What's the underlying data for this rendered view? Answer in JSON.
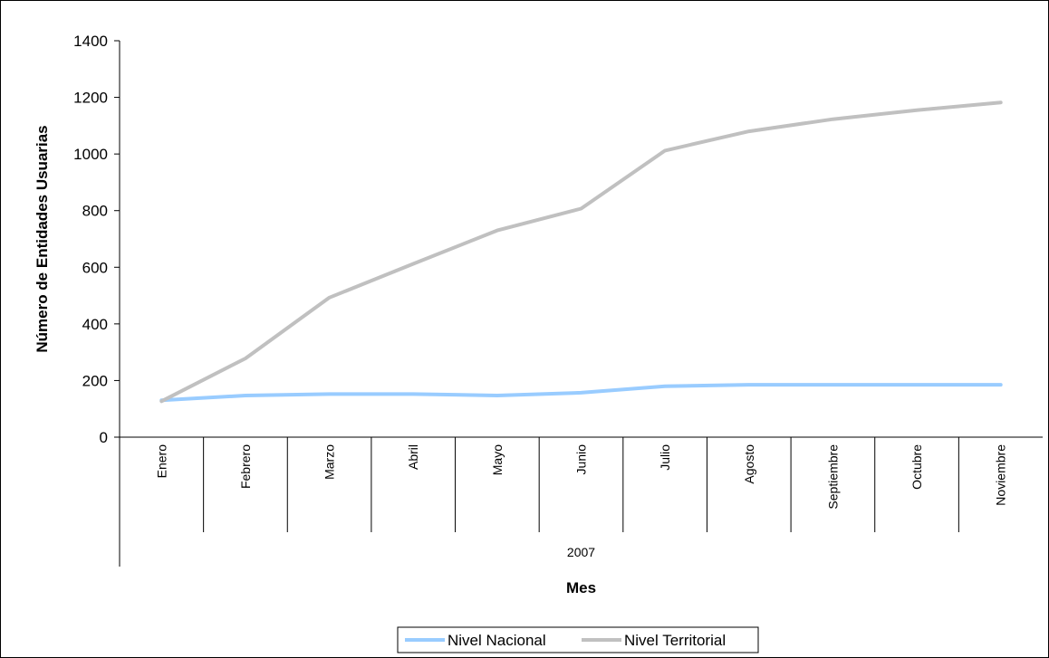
{
  "chart_data": {
    "type": "line",
    "title": "",
    "xlabel": "Mes",
    "ylabel": "Número de  Entidades Usuarias",
    "group_label": "2007",
    "categories": [
      "Enero",
      "Febrero",
      "Marzo",
      "Abril",
      "Mayo",
      "Junio",
      "Julio",
      "Agosto",
      "Septiembre",
      "Octubre",
      "Noviembre"
    ],
    "yticks": [
      "0",
      "200",
      "400",
      "600",
      "800",
      "1000",
      "1200",
      "1400"
    ],
    "ylim": [
      0,
      1400
    ],
    "grid": false,
    "legend_position": "bottom",
    "series": [
      {
        "name": "Nivel Nacional",
        "color": "#99ccff",
        "values": [
          130,
          147,
          152,
          152,
          147,
          157,
          180,
          185,
          185,
          185,
          185
        ]
      },
      {
        "name": "Nivel Territorial",
        "color": "#c0c0c0",
        "values": [
          127,
          278,
          493,
          612,
          730,
          807,
          1012,
          1080,
          1123,
          1155,
          1182
        ]
      }
    ]
  }
}
